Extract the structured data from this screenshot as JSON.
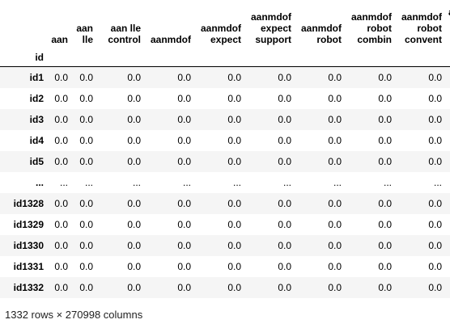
{
  "table": {
    "index_name": "id",
    "columns": [
      "aan",
      "aan lle",
      "aan lle control",
      "aanmdof",
      "aanmdof expect",
      "aanmdof expect support",
      "aanmdof robot",
      "aanmdof robot combin",
      "aanmdof robot convent",
      "a"
    ],
    "rows": [
      {
        "id": "id1",
        "values": [
          "0.0",
          "0.0",
          "0.0",
          "0.0",
          "0.0",
          "0.0",
          "0.0",
          "0.0",
          "0.0"
        ]
      },
      {
        "id": "id2",
        "values": [
          "0.0",
          "0.0",
          "0.0",
          "0.0",
          "0.0",
          "0.0",
          "0.0",
          "0.0",
          "0.0"
        ]
      },
      {
        "id": "id3",
        "values": [
          "0.0",
          "0.0",
          "0.0",
          "0.0",
          "0.0",
          "0.0",
          "0.0",
          "0.0",
          "0.0"
        ]
      },
      {
        "id": "id4",
        "values": [
          "0.0",
          "0.0",
          "0.0",
          "0.0",
          "0.0",
          "0.0",
          "0.0",
          "0.0",
          "0.0"
        ]
      },
      {
        "id": "id5",
        "values": [
          "0.0",
          "0.0",
          "0.0",
          "0.0",
          "0.0",
          "0.0",
          "0.0",
          "0.0",
          "0.0"
        ]
      },
      {
        "id": "...",
        "values": [
          "...",
          "...",
          "...",
          "...",
          "...",
          "...",
          "...",
          "...",
          "..."
        ]
      },
      {
        "id": "id1328",
        "values": [
          "0.0",
          "0.0",
          "0.0",
          "0.0",
          "0.0",
          "0.0",
          "0.0",
          "0.0",
          "0.0"
        ]
      },
      {
        "id": "id1329",
        "values": [
          "0.0",
          "0.0",
          "0.0",
          "0.0",
          "0.0",
          "0.0",
          "0.0",
          "0.0",
          "0.0"
        ]
      },
      {
        "id": "id1330",
        "values": [
          "0.0",
          "0.0",
          "0.0",
          "0.0",
          "0.0",
          "0.0",
          "0.0",
          "0.0",
          "0.0"
        ]
      },
      {
        "id": "id1331",
        "values": [
          "0.0",
          "0.0",
          "0.0",
          "0.0",
          "0.0",
          "0.0",
          "0.0",
          "0.0",
          "0.0"
        ]
      },
      {
        "id": "id1332",
        "values": [
          "0.0",
          "0.0",
          "0.0",
          "0.0",
          "0.0",
          "0.0",
          "0.0",
          "0.0",
          "0.0"
        ]
      }
    ]
  },
  "footer": "1332 rows × 270998 columns"
}
